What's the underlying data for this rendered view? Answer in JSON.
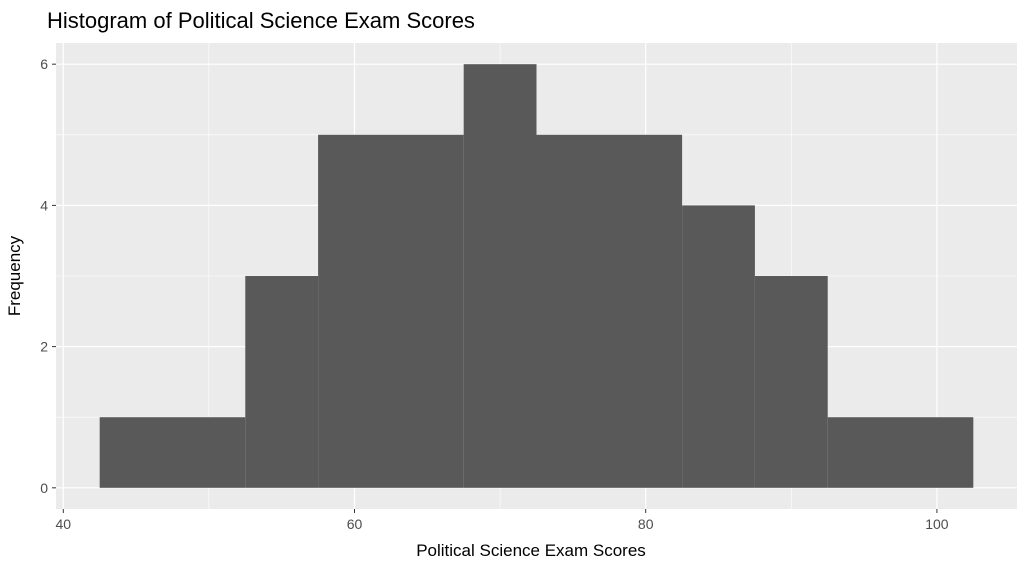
{
  "chart_data": {
    "type": "bar",
    "title": "Histogram of Political Science Exam Scores",
    "xlabel": "Political Science Exam Scores",
    "ylabel": "Frequency",
    "bins": [
      {
        "x0": 42.5,
        "x1": 52.5,
        "count": 1
      },
      {
        "x0": 52.5,
        "x1": 57.5,
        "count": 3
      },
      {
        "x0": 57.5,
        "x1": 67.5,
        "count": 5
      },
      {
        "x0": 67.5,
        "x1": 72.5,
        "count": 6
      },
      {
        "x0": 72.5,
        "x1": 82.5,
        "count": 5
      },
      {
        "x0": 82.5,
        "x1": 87.5,
        "count": 4
      },
      {
        "x0": 87.5,
        "x1": 92.5,
        "count": 3
      },
      {
        "x0": 92.5,
        "x1": 102.5,
        "count": 1
      }
    ],
    "xlim": [
      39.5,
      105.5
    ],
    "ylim": [
      -0.3,
      6.3
    ],
    "x_ticks": [
      40,
      60,
      80,
      100
    ],
    "x_tick_labels": [
      "40",
      "60",
      "80",
      "100"
    ],
    "x_minor": [
      50,
      70,
      90
    ],
    "y_ticks": [
      0,
      2,
      4,
      6
    ],
    "y_tick_labels": [
      "0",
      "2",
      "4",
      "6"
    ],
    "y_minor": [
      1,
      3,
      5
    ],
    "grid": true,
    "colors": {
      "panel": "#ebebeb",
      "grid": "#ffffff",
      "bar": "#595959",
      "tick_text": "#4d4d4d",
      "tick_mark": "#333333"
    }
  }
}
